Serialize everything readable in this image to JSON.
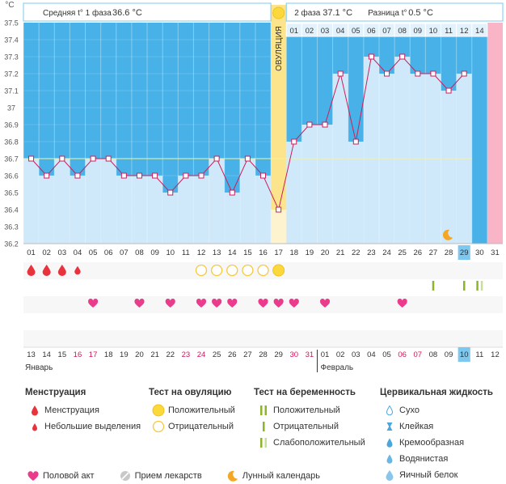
{
  "chart_data": {
    "type": "line",
    "ylabel": "°C",
    "ylim": [
      36.2,
      37.5
    ],
    "yticks": [
      "37.5",
      "37.4",
      "37.3",
      "37.2",
      "37.1",
      "37",
      "36.9",
      "36.8",
      "36.7",
      "36.6",
      "36.5",
      "36.4",
      "36.3",
      "36.2"
    ],
    "cycle_days": [
      "01",
      "02",
      "03",
      "04",
      "05",
      "06",
      "07",
      "08",
      "09",
      "10",
      "11",
      "12",
      "13",
      "14",
      "15",
      "16",
      "17",
      "18",
      "19",
      "20",
      "21",
      "22",
      "23",
      "24",
      "25",
      "26",
      "27",
      "28",
      "29",
      "30",
      "31"
    ],
    "temperatures": [
      36.7,
      36.6,
      36.7,
      36.6,
      36.7,
      36.7,
      36.6,
      36.6,
      36.6,
      36.5,
      36.6,
      36.6,
      36.7,
      36.5,
      36.7,
      36.6,
      36.4,
      36.8,
      36.9,
      36.9,
      37.2,
      36.8,
      37.3,
      37.2,
      37.3,
      37.2,
      37.2,
      37.1,
      37.2,
      null,
      null
    ],
    "coverline": 36.7,
    "phase1_text": "Средняя t° 1 фаза",
    "phase1_value": "36.6 °C",
    "phase2_text": "2 фаза",
    "phase2_value": "37.1 °C",
    "diff_text": "Разница t°",
    "diff_value": "0.5 °C",
    "ovulation_label": "ОВУЛЯЦИЯ",
    "ovulation_day": 17,
    "phase2_days": [
      "01",
      "02",
      "03",
      "04",
      "05",
      "06",
      "07",
      "08",
      "09",
      "10",
      "11",
      "12",
      "14"
    ],
    "current_day": 29,
    "expected_period_day": 30,
    "menstruation": [
      {
        "day": 1,
        "type": "heavy"
      },
      {
        "day": 2,
        "type": "heavy"
      },
      {
        "day": 3,
        "type": "heavy"
      },
      {
        "day": 4,
        "type": "light"
      }
    ],
    "ovulation_tests": [
      {
        "day": 12,
        "result": "negative"
      },
      {
        "day": 13,
        "result": "negative"
      },
      {
        "day": 14,
        "result": "negative"
      },
      {
        "day": 15,
        "result": "negative"
      },
      {
        "day": 16,
        "result": "negative"
      },
      {
        "day": 17,
        "result": "positive"
      }
    ],
    "pregnancy_tests": [
      {
        "day": 27,
        "result": "positive"
      },
      {
        "day": 29,
        "result": "positive"
      },
      {
        "day": 30,
        "result": "weak"
      }
    ],
    "intercourse_days": [
      5,
      8,
      10,
      12,
      13,
      14,
      16,
      17,
      18,
      20,
      25
    ],
    "moon_day": 28,
    "dates": [
      {
        "d": "13",
        "red": false
      },
      {
        "d": "14",
        "red": false
      },
      {
        "d": "15",
        "red": false
      },
      {
        "d": "16",
        "red": true
      },
      {
        "d": "17",
        "red": true
      },
      {
        "d": "18",
        "red": false
      },
      {
        "d": "19",
        "red": false
      },
      {
        "d": "20",
        "red": false
      },
      {
        "d": "21",
        "red": false
      },
      {
        "d": "22",
        "red": false
      },
      {
        "d": "23",
        "red": true
      },
      {
        "d": "24",
        "red": true
      },
      {
        "d": "25",
        "red": false
      },
      {
        "d": "26",
        "red": false
      },
      {
        "d": "27",
        "red": false
      },
      {
        "d": "28",
        "red": false
      },
      {
        "d": "29",
        "red": false
      },
      {
        "d": "30",
        "red": true
      },
      {
        "d": "31",
        "red": true
      },
      {
        "d": "01",
        "red": false
      },
      {
        "d": "02",
        "red": false
      },
      {
        "d": "03",
        "red": false
      },
      {
        "d": "04",
        "red": false
      },
      {
        "d": "05",
        "red": false
      },
      {
        "d": "06",
        "red": true
      },
      {
        "d": "07",
        "red": true
      },
      {
        "d": "08",
        "red": false
      },
      {
        "d": "09",
        "red": false
      },
      {
        "d": "10",
        "red": false
      },
      {
        "d": "11",
        "red": false
      },
      {
        "d": "12",
        "red": false
      }
    ],
    "month1": "Январь",
    "month2": "Февраль",
    "month2_start_day": 20,
    "colors": {
      "bar_fill": "#cfe9fb",
      "grid_bg": "#48b2e8",
      "phase2_bg": "#48b2e8",
      "line": "#cc1f5a",
      "ovulation": "#fbe48b",
      "period": "#f9b4c8",
      "heart": "#ea3b8c",
      "blood": "#e8323c",
      "preg": "#8cb628"
    }
  },
  "legend": {
    "menstr_title": "Менструация",
    "menstr_heavy": "Менструация",
    "menstr_light": "Небольшие выделения",
    "ovtest_title": "Тест на овуляцию",
    "ovtest_pos": "Положительный",
    "ovtest_neg": "Отрицательный",
    "preg_title": "Тест на беременность",
    "preg_pos": "Положительный",
    "preg_neg": "Отрицательный",
    "preg_weak": "Слабоположительный",
    "cerv_title": "Цервикальная жидкость",
    "cerv_dry": "Сухо",
    "cerv_sticky": "Клейкая",
    "cerv_creamy": "Кремообразная",
    "cerv_watery": "Водянистая",
    "cerv_eggwhite": "Яичный белок",
    "sex": "Половой акт",
    "meds": "Прием лекарств",
    "moon": "Лунный календарь"
  }
}
